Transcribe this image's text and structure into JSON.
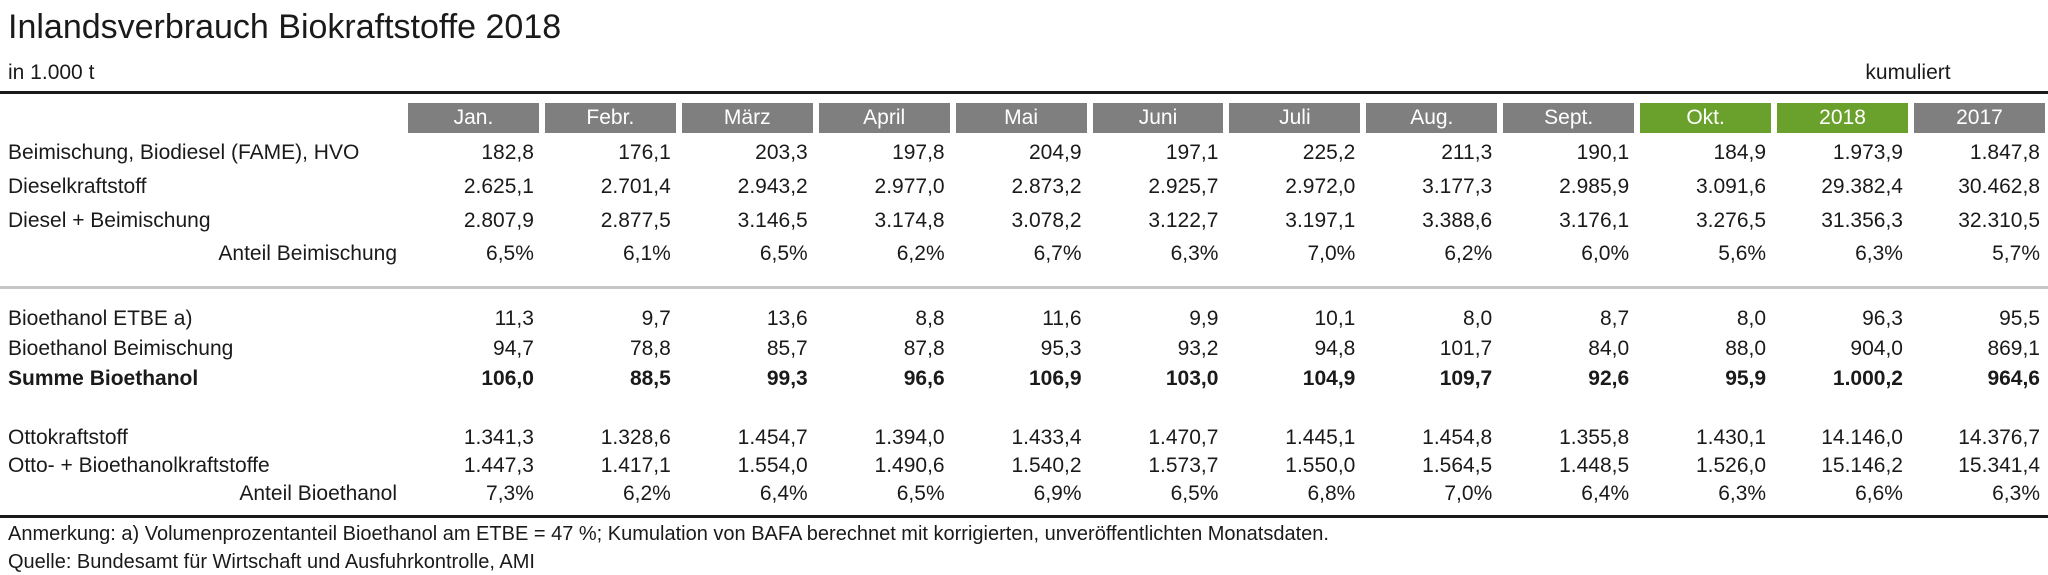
{
  "header": {
    "title": "Inlandsverbrauch Biokraftstoffe 2018",
    "unit": "in 1.000 t",
    "cumulated": "kumuliert"
  },
  "colors": {
    "header_gray": "#7f7f7f",
    "highlight_green": "#6aa02c",
    "divider": "#c6c6c6",
    "rule": "#1a1a1a",
    "text": "#1a1a1a"
  },
  "chart_data": {
    "type": "table",
    "title": "Inlandsverbrauch Biokraftstoffe 2018",
    "unit": "in 1.000 t",
    "cumulated_columns_label": "kumuliert",
    "columns": [
      {
        "label": "Jan.",
        "highlight": false
      },
      {
        "label": "Febr.",
        "highlight": false
      },
      {
        "label": "März",
        "highlight": false
      },
      {
        "label": "April",
        "highlight": false
      },
      {
        "label": "Mai",
        "highlight": false
      },
      {
        "label": "Juni",
        "highlight": false
      },
      {
        "label": "Juli",
        "highlight": false
      },
      {
        "label": "Aug.",
        "highlight": false
      },
      {
        "label": "Sept.",
        "highlight": false
      },
      {
        "label": "Okt.",
        "highlight": true
      },
      {
        "label": "2018",
        "highlight": true
      },
      {
        "label": "2017",
        "highlight": false
      }
    ],
    "sections": [
      {
        "divider_after": "line",
        "rows": [
          {
            "label": "Beimischung, Biodiesel (FAME), HVO",
            "label_align": "left",
            "bold": false,
            "values": [
              "182,8",
              "176,1",
              "203,3",
              "197,8",
              "204,9",
              "197,1",
              "225,2",
              "211,3",
              "190,1",
              "184,9",
              "1.973,9",
              "1.847,8"
            ]
          },
          {
            "label": "Dieselkraftstoff",
            "label_align": "left",
            "bold": false,
            "values": [
              "2.625,1",
              "2.701,4",
              "2.943,2",
              "2.977,0",
              "2.873,2",
              "2.925,7",
              "2.972,0",
              "3.177,3",
              "2.985,9",
              "3.091,6",
              "29.382,4",
              "30.462,8"
            ]
          },
          {
            "label": "Diesel + Beimischung",
            "label_align": "left",
            "bold": false,
            "values": [
              "2.807,9",
              "2.877,5",
              "3.146,5",
              "3.174,8",
              "3.078,2",
              "3.122,7",
              "3.197,1",
              "3.388,6",
              "3.176,1",
              "3.276,5",
              "31.356,3",
              "32.310,5"
            ]
          },
          {
            "label": "Anteil Beimischung",
            "label_align": "right",
            "bold": false,
            "percent": true,
            "values": [
              "6,5%",
              "6,1%",
              "6,5%",
              "6,2%",
              "6,7%",
              "6,3%",
              "7,0%",
              "6,2%",
              "6,0%",
              "5,6%",
              "6,3%",
              "5,7%"
            ]
          }
        ]
      },
      {
        "divider_after": "gap",
        "rows": [
          {
            "label": "Bioethanol ETBE a)",
            "label_align": "left",
            "bold": false,
            "values": [
              "11,3",
              "9,7",
              "13,6",
              "8,8",
              "11,6",
              "9,9",
              "10,1",
              "8,0",
              "8,7",
              "8,0",
              "96,3",
              "95,5"
            ]
          },
          {
            "label": "Bioethanol Beimischung",
            "label_align": "left",
            "bold": false,
            "values": [
              "94,7",
              "78,8",
              "85,7",
              "87,8",
              "95,3",
              "93,2",
              "94,8",
              "101,7",
              "84,0",
              "88,0",
              "904,0",
              "869,1"
            ]
          },
          {
            "label": "Summe Bioethanol",
            "label_align": "left",
            "bold": true,
            "values": [
              "106,0",
              "88,5",
              "99,3",
              "96,6",
              "106,9",
              "103,0",
              "104,9",
              "109,7",
              "92,6",
              "95,9",
              "1.000,2",
              "964,6"
            ]
          }
        ]
      },
      {
        "divider_after": null,
        "rows": [
          {
            "label": "Ottokraftstoff",
            "label_align": "left",
            "bold": false,
            "values": [
              "1.341,3",
              "1.328,6",
              "1.454,7",
              "1.394,0",
              "1.433,4",
              "1.470,7",
              "1.445,1",
              "1.454,8",
              "1.355,8",
              "1.430,1",
              "14.146,0",
              "14.376,7"
            ]
          },
          {
            "label": "Otto- + Bioethanolkraftstoffe",
            "label_align": "left",
            "bold": false,
            "values": [
              "1.447,3",
              "1.417,1",
              "1.554,0",
              "1.490,6",
              "1.540,2",
              "1.573,7",
              "1.550,0",
              "1.564,5",
              "1.448,5",
              "1.526,0",
              "15.146,2",
              "15.341,4"
            ]
          },
          {
            "label": "Anteil Bioethanol",
            "label_align": "right",
            "bold": false,
            "percent": true,
            "values": [
              "7,3%",
              "6,2%",
              "6,4%",
              "6,5%",
              "6,9%",
              "6,5%",
              "6,8%",
              "7,0%",
              "6,4%",
              "6,3%",
              "6,6%",
              "6,3%"
            ]
          }
        ]
      }
    ]
  },
  "footer": {
    "note": "Anmerkung: a) Volumenprozentanteil Bioethanol am ETBE = 47 %; Kumulation von BAFA berechnet mit korrigierten, unveröffentlichten Monatsdaten.",
    "source": "Quelle: Bundesamt für Wirtschaft und Ausfuhrkontrolle, AMI"
  }
}
